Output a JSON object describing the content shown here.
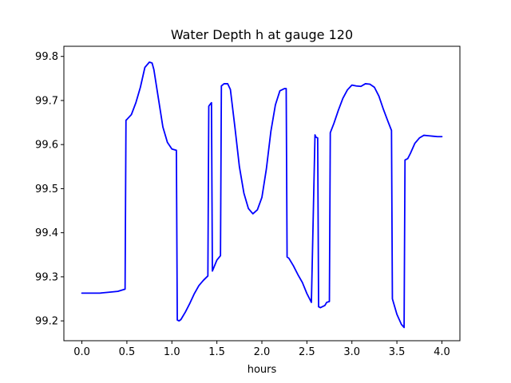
{
  "chart_data": {
    "type": "line",
    "title": "Water Depth h at gauge 120",
    "xlabel": "hours",
    "ylabel": "",
    "xlim": [
      -0.2,
      4.2
    ],
    "ylim": [
      99.155,
      99.823
    ],
    "xticks": [
      0.0,
      0.5,
      1.0,
      1.5,
      2.0,
      2.5,
      3.0,
      3.5,
      4.0
    ],
    "xtick_labels": [
      "0.0",
      "0.5",
      "1.0",
      "1.5",
      "2.0",
      "2.5",
      "3.0",
      "3.5",
      "4.0"
    ],
    "yticks": [
      99.2,
      99.3,
      99.4,
      99.5,
      99.6,
      99.7,
      99.8
    ],
    "ytick_labels": [
      "99.2",
      "99.3",
      "99.4",
      "99.5",
      "99.6",
      "99.7",
      "99.8"
    ],
    "grid": false,
    "legend": "none",
    "series": [
      {
        "color": "#0000ff",
        "x": [
          0.0,
          0.1,
          0.2,
          0.3,
          0.4,
          0.48,
          0.49,
          0.5,
          0.55,
          0.6,
          0.65,
          0.7,
          0.75,
          0.78,
          0.8,
          0.85,
          0.9,
          0.95,
          1.0,
          1.05,
          1.06,
          1.08,
          1.1,
          1.15,
          1.2,
          1.25,
          1.3,
          1.35,
          1.4,
          1.41,
          1.42,
          1.44,
          1.45,
          1.46,
          1.48,
          1.5,
          1.54,
          1.55,
          1.58,
          1.62,
          1.65,
          1.7,
          1.75,
          1.8,
          1.85,
          1.9,
          1.95,
          2.0,
          2.05,
          2.1,
          2.15,
          2.2,
          2.25,
          2.27,
          2.28,
          2.3,
          2.35,
          2.4,
          2.45,
          2.5,
          2.55,
          2.59,
          2.6,
          2.62,
          2.63,
          2.65,
          2.7,
          2.72,
          2.75,
          2.76,
          2.8,
          2.85,
          2.9,
          2.95,
          3.0,
          3.05,
          3.1,
          3.15,
          3.2,
          3.25,
          3.3,
          3.35,
          3.4,
          3.44,
          3.45,
          3.5,
          3.55,
          3.58,
          3.59,
          3.6,
          3.62,
          3.65,
          3.7,
          3.75,
          3.8,
          3.85,
          3.9,
          3.95,
          4.0
        ],
        "y": [
          99.263,
          99.263,
          99.263,
          99.265,
          99.267,
          99.272,
          99.655,
          99.657,
          99.668,
          99.695,
          99.73,
          99.775,
          99.787,
          99.785,
          99.77,
          99.705,
          99.64,
          99.605,
          99.59,
          99.587,
          99.202,
          99.2,
          99.203,
          99.22,
          99.24,
          99.262,
          99.28,
          99.292,
          99.302,
          99.687,
          99.69,
          99.695,
          99.313,
          99.318,
          99.328,
          99.338,
          99.348,
          99.733,
          99.738,
          99.738,
          99.725,
          99.64,
          99.55,
          99.49,
          99.455,
          99.443,
          99.452,
          99.48,
          99.545,
          99.63,
          99.69,
          99.722,
          99.727,
          99.727,
          99.345,
          99.342,
          99.325,
          99.305,
          99.287,
          99.262,
          99.242,
          99.622,
          99.617,
          99.615,
          99.232,
          99.23,
          99.235,
          99.242,
          99.244,
          99.627,
          99.648,
          99.678,
          99.705,
          99.724,
          99.735,
          99.733,
          99.732,
          99.738,
          99.737,
          99.73,
          99.71,
          99.68,
          99.653,
          99.632,
          99.25,
          99.215,
          99.192,
          99.185,
          99.565,
          99.566,
          99.568,
          99.58,
          99.603,
          99.615,
          99.621,
          99.62,
          99.619,
          99.618,
          99.618
        ]
      }
    ]
  }
}
